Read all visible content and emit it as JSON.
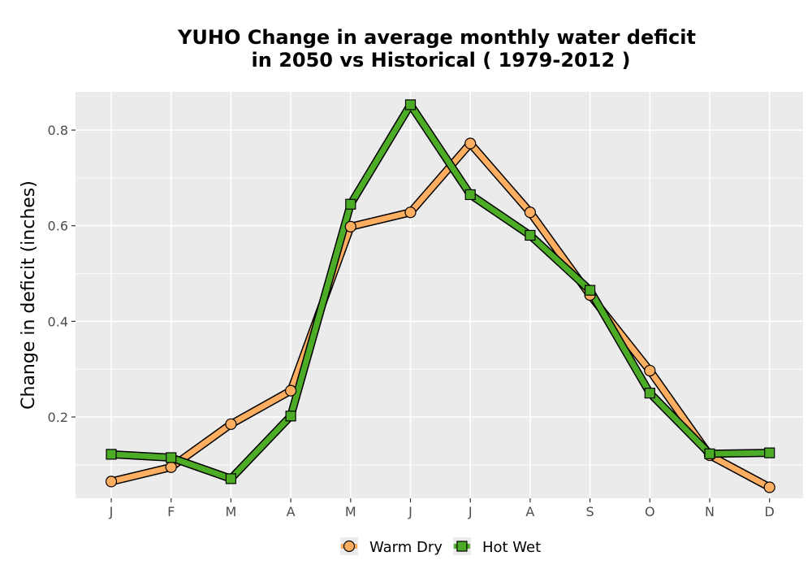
{
  "chart_data": {
    "type": "line",
    "title_lines": [
      "YUHO  Change in average monthly water deficit",
      "in 2050 vs Historical ( 1979-2012 )"
    ],
    "ylabel": "Change in deficit (inches)",
    "xlabel": "",
    "categories": [
      "J",
      "F",
      "M",
      "A",
      "M",
      "J",
      "J",
      "A",
      "S",
      "O",
      "N",
      "D"
    ],
    "ylim": [
      0.03,
      0.88
    ],
    "yticks": [
      0.2,
      0.4,
      0.6,
      0.8
    ],
    "ytick_labels": [
      "0.2",
      "0.4",
      "0.6",
      "0.8"
    ],
    "grid": true,
    "legend_position": "bottom",
    "series": [
      {
        "name": "Warm Dry",
        "marker": "circle",
        "color": "#fdae61",
        "values": [
          0.065,
          0.095,
          0.185,
          0.255,
          0.598,
          0.628,
          0.772,
          0.628,
          0.455,
          0.297,
          0.12,
          0.053
        ]
      },
      {
        "name": "Hot Wet",
        "marker": "square",
        "color": "#4dac26",
        "values": [
          0.122,
          0.115,
          0.071,
          0.202,
          0.645,
          0.853,
          0.665,
          0.58,
          0.465,
          0.25,
          0.123,
          0.125
        ]
      }
    ]
  }
}
